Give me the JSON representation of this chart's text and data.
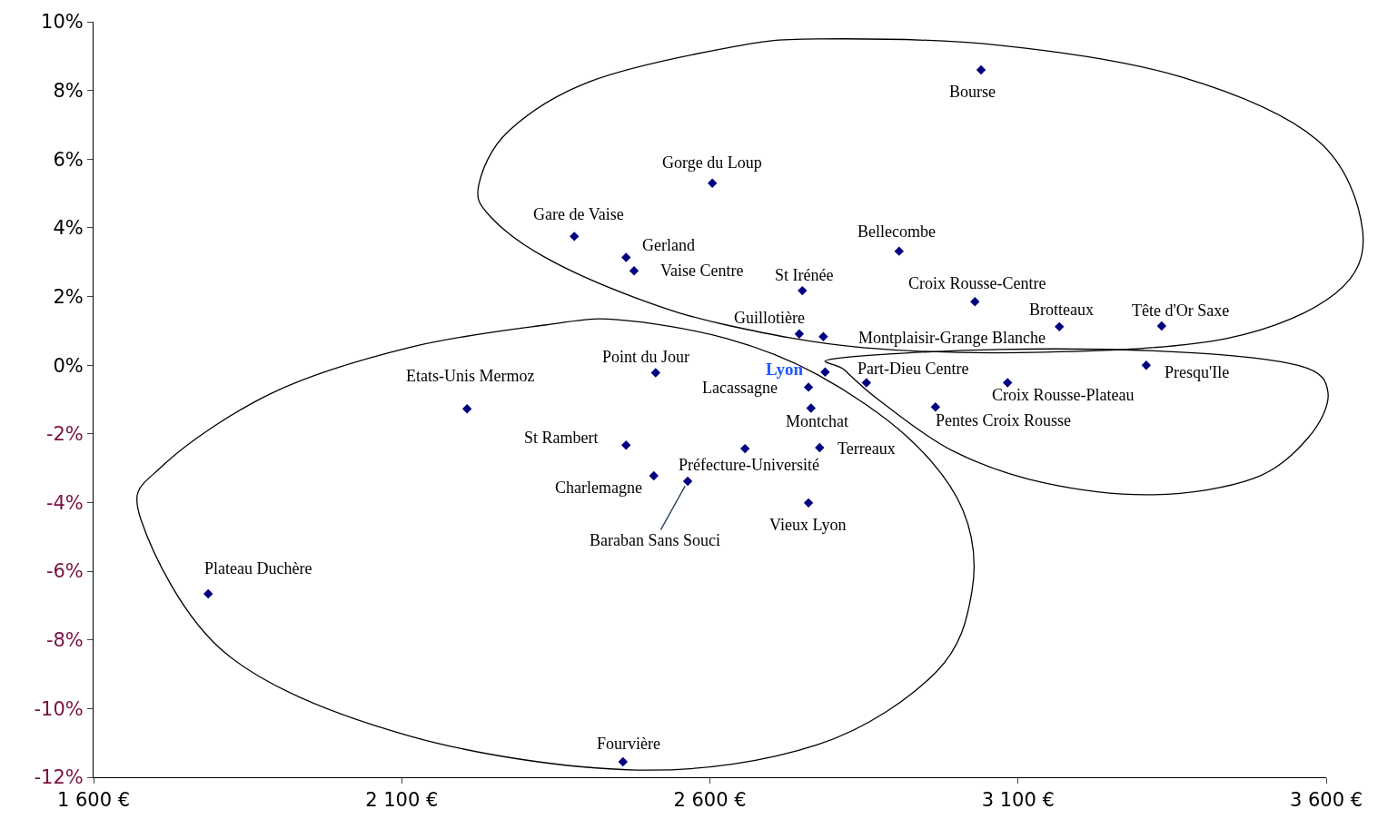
{
  "chart_data": {
    "type": "scatter",
    "marker": "diamond",
    "grid": false,
    "xlim": [
      1600,
      3600
    ],
    "xticks": [
      {
        "value": 1600,
        "label": "1 600 €"
      },
      {
        "value": 2100,
        "label": "2 100 €"
      },
      {
        "value": 2600,
        "label": "2 600 €"
      },
      {
        "value": 3100,
        "label": "3 100 €"
      },
      {
        "value": 3600,
        "label": "3 600 €"
      }
    ],
    "ylim": [
      -12,
      10
    ],
    "yticks": [
      {
        "value": 10,
        "label": "10%"
      },
      {
        "value": 8,
        "label": "8%"
      },
      {
        "value": 6,
        "label": "6%"
      },
      {
        "value": 4,
        "label": "4%"
      },
      {
        "value": 2,
        "label": "2%"
      },
      {
        "value": 0,
        "label": "0%"
      },
      {
        "value": -2,
        "label": "-2%"
      },
      {
        "value": -4,
        "label": "-4%"
      },
      {
        "value": -6,
        "label": "-6%"
      },
      {
        "value": -8,
        "label": "-8%"
      },
      {
        "value": -10,
        "label": "-10%"
      },
      {
        "value": -12,
        "label": "-12%"
      }
    ],
    "series": [
      {
        "color": "#000080",
        "x": [
          3040,
          2604,
          2380,
          2464,
          2477,
          2750,
          2907,
          3030,
          3167,
          3333,
          2745,
          2784,
          2787,
          2854,
          3308,
          3083,
          2966,
          2512,
          2760,
          2764,
          2206,
          2464,
          2778,
          2657,
          2509,
          2564,
          2760,
          1786,
          2459
        ],
        "values": [
          8.6,
          5.3,
          3.75,
          3.14,
          2.75,
          2.17,
          3.32,
          1.85,
          1.12,
          1.14,
          0.91,
          0.83,
          -0.2,
          -0.51,
          0,
          -0.51,
          -1.22,
          -0.22,
          -0.64,
          -1.25,
          -1.27,
          -2.33,
          -2.4,
          -2.43,
          -3.22,
          -3.38,
          -4.01,
          -6.66,
          -11.55
        ]
      }
    ],
    "annotations": [
      {
        "text": "Bourse",
        "x": 3040,
        "y": 8.6
      },
      {
        "text": "Gorge du Loup",
        "x": 2604,
        "y": 5.3
      },
      {
        "text": "Gare de Vaise",
        "x": 2380,
        "y": 3.75
      },
      {
        "text": "Gerland",
        "x": 2464,
        "y": 3.14
      },
      {
        "text": "Vaise Centre",
        "x": 2477,
        "y": 2.75
      },
      {
        "text": "St Irénée",
        "x": 2750,
        "y": 2.17
      },
      {
        "text": "Bellecombe",
        "x": 2907,
        "y": 3.32
      },
      {
        "text": "Croix Rousse-Centre",
        "x": 3030,
        "y": 1.85
      },
      {
        "text": "Brotteaux",
        "x": 3167,
        "y": 1.12
      },
      {
        "text": "Tête d'Or Saxe",
        "x": 3333,
        "y": 1.14
      },
      {
        "text": "Guillotière",
        "x": 2745,
        "y": 0.91
      },
      {
        "text": "Montplaisir-Grange Blanche",
        "x": 2784,
        "y": 0.83
      },
      {
        "text": "Lyon",
        "x": 2787,
        "y": -0.2
      },
      {
        "text": "Part-Dieu Centre",
        "x": 2854,
        "y": -0.51
      },
      {
        "text": "Presqu'Ile",
        "x": 3308,
        "y": 0
      },
      {
        "text": "Croix Rousse-Plateau",
        "x": 3083,
        "y": -0.51
      },
      {
        "text": "Pentes Croix Rousse",
        "x": 2966,
        "y": -1.22
      },
      {
        "text": "Point du Jour",
        "x": 2512,
        "y": -0.22
      },
      {
        "text": "Lacassagne",
        "x": 2760,
        "y": -0.64
      },
      {
        "text": "Montchat",
        "x": 2764,
        "y": -1.25
      },
      {
        "text": "Etats-Unis Mermoz",
        "x": 2206,
        "y": -1.27
      },
      {
        "text": "St Rambert",
        "x": 2464,
        "y": -2.33
      },
      {
        "text": "Terreaux",
        "x": 2778,
        "y": -2.4
      },
      {
        "text": "Préfecture-Université",
        "x": 2657,
        "y": -2.43
      },
      {
        "text": "Charlemagne",
        "x": 2509,
        "y": -3.22
      },
      {
        "text": "Baraban Sans Souci",
        "x": 2564,
        "y": -3.38
      },
      {
        "text": "Vieux Lyon",
        "x": 2760,
        "y": -4.01
      },
      {
        "text": "Plateau Duchère",
        "x": 1786,
        "y": -6.66
      },
      {
        "text": "Fourvière",
        "x": 2459,
        "y": -11.55
      }
    ]
  }
}
